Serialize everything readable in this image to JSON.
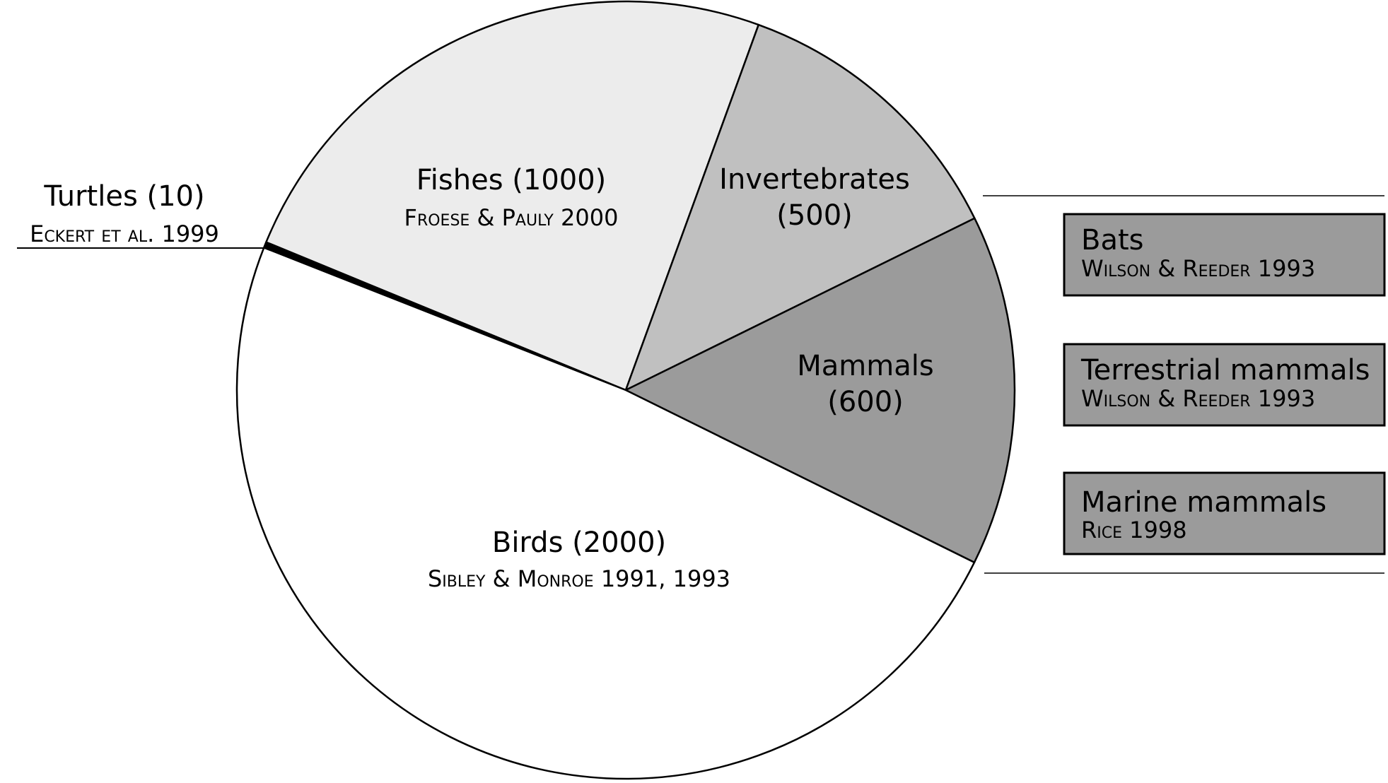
{
  "chart_data": {
    "type": "pie",
    "title": "",
    "slices": [
      {
        "label": "Turtles (10)",
        "value": 10,
        "citation": "Eckert et al. 1999",
        "color": "#000000"
      },
      {
        "label": "Fishes (1000)",
        "value": 1000,
        "citation": "Froese & Pauly 2000",
        "color": "#ececec"
      },
      {
        "label": "Invertebrates",
        "label_line2": "(500)",
        "value": 500,
        "citation": "",
        "color": "#c0c0c0"
      },
      {
        "label": "Mammals",
        "label_line2": "(600)",
        "value": 600,
        "citation": "",
        "color": "#9b9b9b"
      },
      {
        "label": "Birds (2000)",
        "value": 2000,
        "citation": "Sibley & Monroe 1991, 1993",
        "color": "#ffffff"
      }
    ],
    "mammal_breakdown": [
      {
        "label": "Bats",
        "citation": "Wilson & Reeder 1993",
        "color": "#9b9b9b"
      },
      {
        "label": "Terrestrial mammals",
        "citation": "Wilson & Reeder 1993",
        "color": "#9b9b9b"
      },
      {
        "label": "Marine mammals",
        "citation": "Rice 1998",
        "color": "#9b9b9b"
      }
    ]
  }
}
